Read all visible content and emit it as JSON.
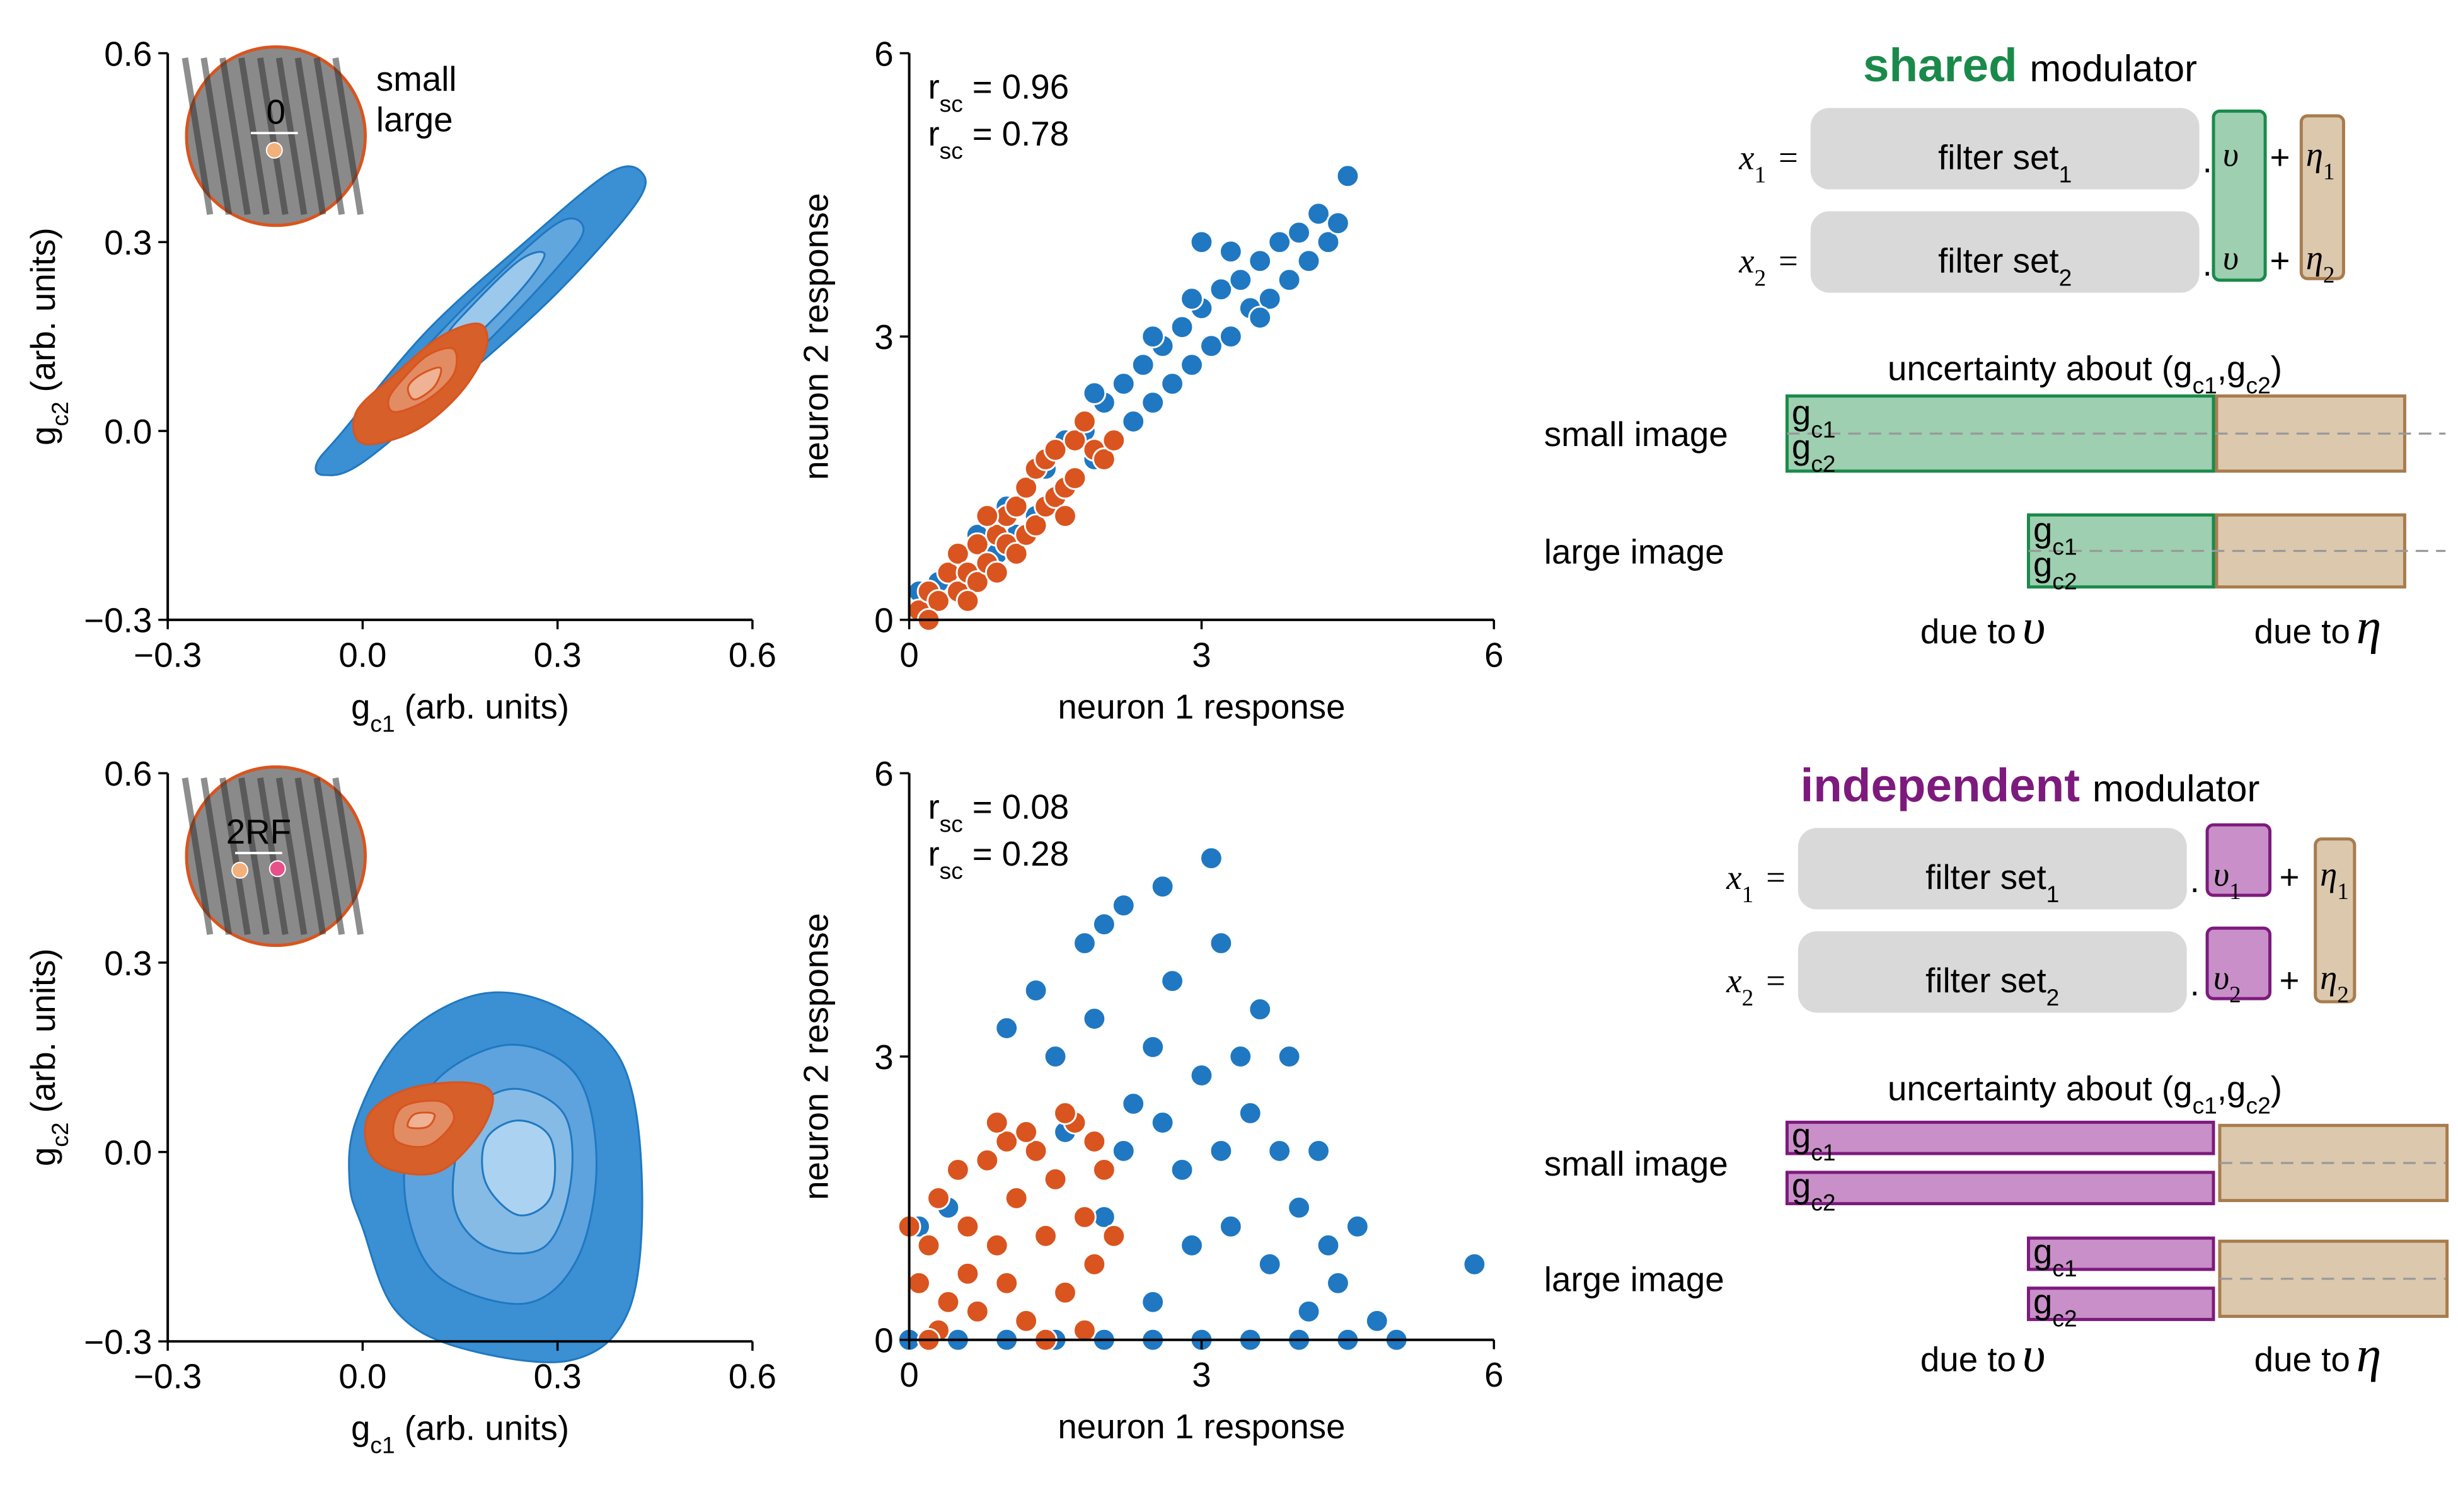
{
  "chart_data": [
    {
      "type": "contour",
      "xlim": [
        -0.3,
        0.6
      ],
      "ylim": [
        -0.3,
        0.6
      ],
      "xticks": [
        {
          "value": -0.3,
          "label": "−0.3"
        },
        {
          "value": 0,
          "label": "0.0"
        },
        0.3,
        0.6
      ],
      "yticks": [
        {
          "value": -0.3,
          "label": "−0.3"
        },
        {
          "value": 0,
          "label": "0.0"
        },
        0.3,
        0.6
      ],
      "x_label": {
        "text": "g",
        "sub": "c1",
        "unit": "(arb. units)"
      },
      "y_label": {
        "text": "g",
        "sub": "c2",
        "unit": "(arb. units)"
      },
      "legend": true,
      "inset": {
        "label": "0"
      },
      "series": [
        {
          "name": "small",
          "color": "#1f78c1",
          "levels": [
            {
              "color": "#3b8fd3",
              "x": [
                -0.06,
                0.0,
                0.15,
                0.3,
                0.42,
                0.43,
                0.38,
                0.25,
                0.1,
                -0.03,
                -0.07
              ],
              "y": [
                -0.07,
                -0.05,
                0.08,
                0.22,
                0.36,
                0.41,
                0.41,
                0.3,
                0.16,
                0.0,
                -0.05
              ]
            },
            {
              "color": "#62a6de",
              "x": [
                0.05,
                0.17,
                0.3,
                0.34,
                0.3,
                0.18,
                0.06,
                0.03
              ],
              "y": [
                0.02,
                0.12,
                0.26,
                0.32,
                0.33,
                0.22,
                0.09,
                0.04
              ]
            },
            {
              "color": "#9cc8ec",
              "x": [
                0.15,
                0.24,
                0.28,
                0.24,
                0.16,
                0.13
              ],
              "y": [
                0.13,
                0.22,
                0.28,
                0.27,
                0.19,
                0.15
              ]
            }
          ]
        },
        {
          "name": "large",
          "color": "#d9541e",
          "levels": [
            {
              "color": "#d65f2a",
              "x": [
                0.0,
                0.08,
                0.15,
                0.19,
                0.18,
                0.12,
                0.05,
                -0.01
              ],
              "y": [
                -0.02,
                0.0,
                0.06,
                0.13,
                0.17,
                0.15,
                0.09,
                0.03
              ]
            },
            {
              "color": "#e28c64",
              "x": [
                0.05,
                0.1,
                0.14,
                0.14,
                0.1,
                0.06,
                0.04
              ],
              "y": [
                0.03,
                0.05,
                0.09,
                0.13,
                0.12,
                0.08,
                0.05
              ]
            },
            {
              "color": "#efb295",
              "x": [
                0.08,
                0.11,
                0.12,
                0.09,
                0.07
              ],
              "y": [
                0.05,
                0.07,
                0.1,
                0.09,
                0.07
              ]
            }
          ]
        }
      ]
    },
    {
      "type": "scatter",
      "xlim": [
        0,
        6
      ],
      "ylim": [
        0,
        6
      ],
      "xticks": [
        0,
        3,
        6
      ],
      "yticks": [
        0,
        3,
        6
      ],
      "x_label": "neuron 1 response",
      "y_label": "neuron 2 response",
      "annotations": [
        {
          "symbol": "r",
          "sub": "sc",
          "equals": "=",
          "value": 0.96,
          "color": "#1f78c1"
        },
        {
          "symbol": "r",
          "sub": "sc",
          "equals": "=",
          "value": 0.78,
          "color": "#d9541e"
        }
      ],
      "series": [
        {
          "color": "#1f78c1",
          "x": [
            0.3,
            0.5,
            0.6,
            0.8,
            0.9,
            1.0,
            1.1,
            1.2,
            1.3,
            1.4,
            1.5,
            1.6,
            1.7,
            1.8,
            1.9,
            2.0,
            2.1,
            2.2,
            2.3,
            2.4,
            2.5,
            2.6,
            2.7,
            2.8,
            2.9,
            3.0,
            3.1,
            3.2,
            3.3,
            3.4,
            3.5,
            3.6,
            3.7,
            3.8,
            3.9,
            4.0,
            4.1,
            4.2,
            4.3,
            4.4,
            4.5,
            3.0,
            3.3,
            2.5,
            1.9,
            0.2,
            0.1,
            0.7,
            2.9,
            3.6
          ],
          "values": [
            0.4,
            0.6,
            0.4,
            1.0,
            0.7,
            1.2,
            0.9,
            1.4,
            1.1,
            1.6,
            1.3,
            1.9,
            1.5,
            2.0,
            1.7,
            2.3,
            1.9,
            2.5,
            2.1,
            2.7,
            2.3,
            2.9,
            2.5,
            3.1,
            2.7,
            3.3,
            2.9,
            3.5,
            3.0,
            3.6,
            3.3,
            3.8,
            3.4,
            4.0,
            3.6,
            4.1,
            3.8,
            4.3,
            4.0,
            4.2,
            4.7,
            4.0,
            3.9,
            3.0,
            2.4,
            0.1,
            0.3,
            0.9,
            3.4,
            3.2
          ]
        },
        {
          "color": "#d9541e",
          "x": [
            0.1,
            0.2,
            0.3,
            0.4,
            0.5,
            0.5,
            0.6,
            0.7,
            0.7,
            0.8,
            0.9,
            0.9,
            1.0,
            1.0,
            1.1,
            1.1,
            1.2,
            1.2,
            1.3,
            1.3,
            1.4,
            1.4,
            1.5,
            1.5,
            1.6,
            1.7,
            1.7,
            1.8,
            1.9,
            2.0,
            2.1,
            0.2,
            0.6,
            0.8,
            1.6
          ],
          "values": [
            0.1,
            0.3,
            0.2,
            0.5,
            0.3,
            0.7,
            0.5,
            0.8,
            0.4,
            0.6,
            0.9,
            0.5,
            0.8,
            1.1,
            0.7,
            1.2,
            0.9,
            1.4,
            1.0,
            1.6,
            1.2,
            1.7,
            1.3,
            1.8,
            1.4,
            1.9,
            1.5,
            2.1,
            1.8,
            1.7,
            1.9,
            0.0,
            0.2,
            1.1,
            1.1
          ]
        }
      ]
    },
    {
      "type": "contour",
      "xlim": [
        -0.3,
        0.6
      ],
      "ylim": [
        -0.3,
        0.6
      ],
      "xticks": [
        {
          "value": -0.3,
          "label": "−0.3"
        },
        {
          "value": 0,
          "label": "0.0"
        },
        0.3,
        0.6
      ],
      "yticks": [
        {
          "value": -0.3,
          "label": "−0.3"
        },
        {
          "value": 0,
          "label": "0.0"
        },
        0.3,
        0.6
      ],
      "x_label": {
        "text": "g",
        "sub": "c1",
        "unit": "(arb. units)"
      },
      "y_label": {
        "text": "g",
        "sub": "c2",
        "unit": "(arb. units)"
      },
      "legend": false,
      "inset": {
        "label": "2RF"
      },
      "series": [
        {
          "color": "#1f78c1",
          "levels": [
            {
              "color": "#3b8fd3",
              "x": [
                0.0,
                0.05,
                0.15,
                0.32,
                0.41,
                0.43,
                0.4,
                0.3,
                0.18,
                0.06,
                -0.01,
                -0.02
              ],
              "y": [
                -0.12,
                -0.25,
                -0.31,
                -0.33,
                -0.25,
                -0.05,
                0.14,
                0.23,
                0.25,
                0.18,
                0.05,
                -0.05
              ]
            },
            {
              "color": "#5ea3dd",
              "x": [
                0.07,
                0.12,
                0.25,
                0.33,
                0.36,
                0.33,
                0.23,
                0.12,
                0.07
              ],
              "y": [
                -0.1,
                -0.2,
                -0.24,
                -0.17,
                -0.02,
                0.12,
                0.17,
                0.12,
                0.02
              ]
            },
            {
              "color": "#86bbe6",
              "x": [
                0.14,
                0.19,
                0.28,
                0.32,
                0.31,
                0.23,
                0.16
              ],
              "y": [
                -0.08,
                -0.15,
                -0.15,
                -0.05,
                0.06,
                0.1,
                0.05
              ]
            },
            {
              "color": "#abd2f0",
              "x": [
                0.19,
                0.24,
                0.29,
                0.29,
                0.24,
                0.19
              ],
              "y": [
                -0.05,
                -0.1,
                -0.07,
                0.02,
                0.05,
                0.02
              ]
            }
          ]
        },
        {
          "color": "#d9541e",
          "levels": [
            {
              "color": "#d65f2a",
              "x": [
                0.01,
                0.05,
                0.12,
                0.18,
                0.2,
                0.16,
                0.07,
                0.01
              ],
              "y": [
                0.0,
                -0.03,
                -0.03,
                0.03,
                0.09,
                0.11,
                0.1,
                0.06
              ]
            },
            {
              "color": "#e28c64",
              "x": [
                0.05,
                0.1,
                0.14,
                0.12,
                0.06
              ],
              "y": [
                0.02,
                0.01,
                0.05,
                0.08,
                0.07
              ]
            },
            {
              "color": "#efb295",
              "x": [
                0.07,
                0.1,
                0.11,
                0.08
              ],
              "y": [
                0.04,
                0.04,
                0.06,
                0.06
              ]
            }
          ]
        }
      ]
    },
    {
      "type": "scatter",
      "xlim": [
        0,
        6
      ],
      "ylim": [
        0,
        6
      ],
      "xticks": [
        0,
        3,
        6
      ],
      "yticks": [
        0,
        3,
        6
      ],
      "x_label": "neuron 1 response",
      "y_label": "neuron 2 response",
      "annotations": [
        {
          "symbol": "r",
          "sub": "sc",
          "equals": "=",
          "value": 0.08,
          "color": "#1f78c1"
        },
        {
          "symbol": "r",
          "sub": "sc",
          "equals": "=",
          "value": 0.28,
          "color": "#d9541e"
        }
      ],
      "series": [
        {
          "color": "#1f78c1",
          "x": [
            2.2,
            2.6,
            3.1,
            3.2,
            1.8,
            1.3,
            1.0,
            2.0,
            2.7,
            3.6,
            3.9,
            4.2,
            4.6,
            5.0,
            5.8,
            4.8,
            4.4,
            4.0,
            3.5,
            3.0,
            2.5,
            2.3,
            2.8,
            3.3,
            3.7,
            2.5,
            2.0,
            1.6,
            1.5,
            0.4,
            0.1,
            0.0,
            0.5,
            1.0,
            1.5,
            2.0,
            2.5,
            3.0,
            3.5,
            4.0,
            4.5,
            3.2,
            2.9,
            2.2,
            3.8,
            4.3,
            2.6,
            1.9,
            3.4,
            4.1
          ],
          "values": [
            4.6,
            4.8,
            5.1,
            4.2,
            4.2,
            3.7,
            3.3,
            4.4,
            3.8,
            3.5,
            3.0,
            2.0,
            1.2,
            0.0,
            0.8,
            0.2,
            0.6,
            1.4,
            2.4,
            2.8,
            3.1,
            2.5,
            1.8,
            1.2,
            0.8,
            0.4,
            1.3,
            2.2,
            3.0,
            1.4,
            1.2,
            0.0,
            0.0,
            0.0,
            0.0,
            0.0,
            0.0,
            0.0,
            0.0,
            0.0,
            0.0,
            2.0,
            1.0,
            2.0,
            2.0,
            1.0,
            2.3,
            3.4,
            3.0,
            0.3
          ]
        },
        {
          "color": "#d9541e",
          "x": [
            0.0,
            0.1,
            0.2,
            0.3,
            0.4,
            0.5,
            0.6,
            0.7,
            0.8,
            0.9,
            1.0,
            1.0,
            1.1,
            1.2,
            1.3,
            1.4,
            1.5,
            1.6,
            1.7,
            1.8,
            1.9,
            2.0,
            1.6,
            1.2,
            0.3,
            0.6,
            1.8,
            2.1,
            0.9,
            1.4,
            0.2,
            1.9
          ],
          "values": [
            1.2,
            0.6,
            1.0,
            1.5,
            0.4,
            1.8,
            1.2,
            0.3,
            1.9,
            1.0,
            2.1,
            0.6,
            1.5,
            0.2,
            2.0,
            1.1,
            1.7,
            0.5,
            2.3,
            1.3,
            0.8,
            1.8,
            2.4,
            2.2,
            0.1,
            0.7,
            0.1,
            1.1,
            2.3,
            0.0,
            0.0,
            2.1
          ]
        }
      ]
    }
  ],
  "diagrams": [
    {
      "title": "shared",
      "title_rest": "modulator",
      "color": "#1a8a4a",
      "fill": "#9dcfb0",
      "rows": [
        {
          "lhs": "x",
          "lhs_sub": "1",
          "eq": "=",
          "filter": "filter set",
          "filter_sub": "1",
          "dot": ".",
          "modulator": "υ",
          "plus": "+",
          "noise": "η",
          "noise_sub": "1"
        },
        {
          "lhs": "x",
          "lhs_sub": "2",
          "eq": "=",
          "filter": "filter set",
          "filter_sub": "2",
          "dot": ".",
          "modulator": "υ",
          "plus": "+",
          "noise": "η",
          "noise_sub": "2"
        }
      ],
      "uncertainty": {
        "text": "uncertainty about (g",
        "sub1": "c1",
        "mid": ",g",
        "sub2": "c2",
        "end": ")"
      },
      "images": [
        "small image",
        "large image"
      ],
      "bar_labels": [
        {
          "text": "g",
          "sub": "c1"
        },
        {
          "text": "g",
          "sub": "c2"
        }
      ],
      "due": [
        {
          "text": "due to",
          "symbol": "υ"
        },
        {
          "text": "due to",
          "symbol": "η"
        }
      ]
    },
    {
      "title": "independent",
      "title_rest": "modulator",
      "color": "#7d1a7d",
      "fill": "#c98fc8",
      "rows": [
        {
          "lhs": "x",
          "lhs_sub": "1",
          "eq": "=",
          "filter": "filter set",
          "filter_sub": "1",
          "dot": ".",
          "modulator": "υ",
          "modulator_sub": "1",
          "plus": "+",
          "noise": "η",
          "noise_sub": "1"
        },
        {
          "lhs": "x",
          "lhs_sub": "2",
          "eq": "=",
          "filter": "filter set",
          "filter_sub": "2",
          "dot": ".",
          "modulator": "υ",
          "modulator_sub": "2",
          "plus": "+",
          "noise": "η",
          "noise_sub": "2"
        }
      ],
      "uncertainty": {
        "text": "uncertainty about (g",
        "sub1": "c1",
        "mid": ",g",
        "sub2": "c2",
        "end": ")"
      },
      "images": [
        "small image",
        "large image"
      ],
      "bar_labels": [
        {
          "text": "g",
          "sub": "c1"
        },
        {
          "text": "g",
          "sub": "c2"
        }
      ],
      "due": [
        {
          "text": "due to",
          "symbol": "υ"
        },
        {
          "text": "due to",
          "symbol": "η"
        }
      ]
    }
  ]
}
